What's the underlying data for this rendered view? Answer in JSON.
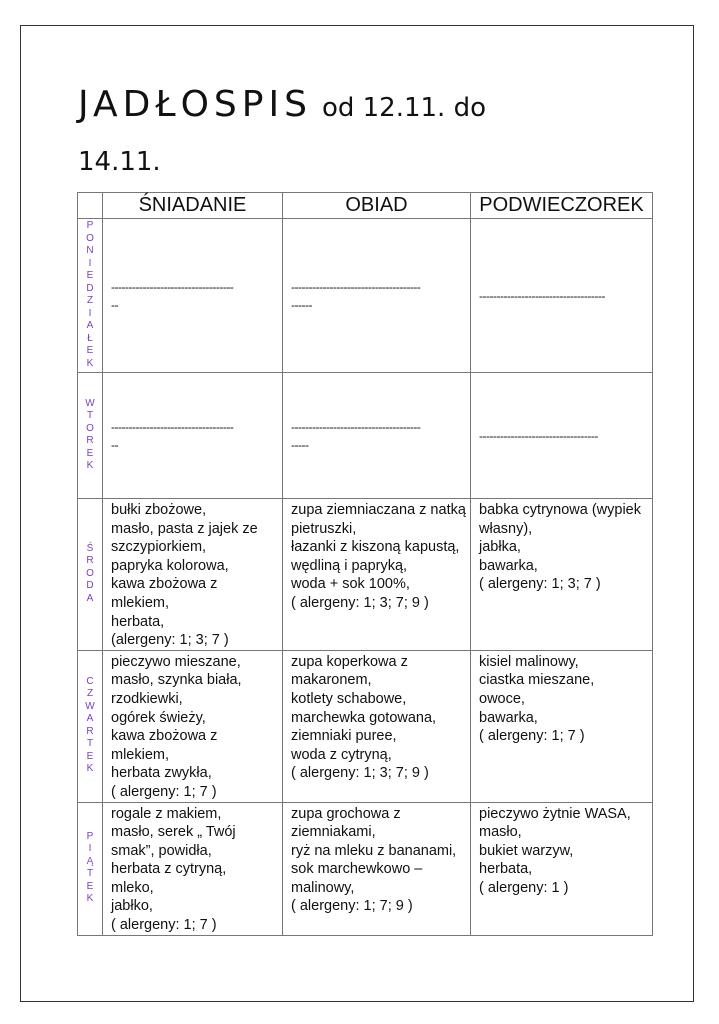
{
  "title": {
    "main": "JADŁOSPIS",
    "range_a": "od 12.11. do",
    "range_b": "14.11."
  },
  "columns": [
    "ŚNIADANIE",
    "OBIAD",
    "PODWIECZOREK"
  ],
  "days": [
    {
      "label": "P\nO\nN\nI\nE\nD\nZ\nI\nA\nŁ\nE\nK",
      "meals": [
        "-----------------------------------\n--",
        "-------------------------------------\n------",
        "------------------------------------"
      ]
    },
    {
      "label": "W\nT\nO\nR\nE\nK",
      "meals": [
        "-----------------------------------\n--",
        "-------------------------------------\n-----",
        "----------------------------------"
      ]
    },
    {
      "label": "Ś\nR\nO\nD\nA",
      "meals": [
        "bułki zbożowe,\nmasło, pasta z jajek ze szczypiorkiem,\npapryka kolorowa,\nkawa zbożowa z mlekiem,\nherbata,\n(alergeny: 1; 3; 7 )",
        "zupa ziemniaczana z natką pietruszki,\nłazanki z kiszoną kapustą, wędliną i papryką,\nwoda + sok 100%,\n( alergeny: 1; 3; 7; 9 )",
        "babka cytrynowa (wypiek własny),\njabłka,\nbawarka,\n( alergeny: 1; 3; 7 )"
      ]
    },
    {
      "label": "C\nZ\nW\nA\nR\nT\nE\nK",
      "meals": [
        "pieczywo mieszane,\nmasło, szynka biała,\nrzodkiewki,\nogórek świeży,\nkawa zbożowa z mlekiem,\nherbata zwykła,\n( alergeny: 1; 7 )",
        "zupa koperkowa z makaronem,\nkotlety schabowe,\nmarchewka gotowana,\nziemniaki puree,\nwoda z cytryną,\n( alergeny: 1; 3; 7; 9 )",
        "kisiel malinowy,\nciastka mieszane,\nowoce,\nbawarka,\n( alergeny: 1; 7 )"
      ]
    },
    {
      "label": "P\nI\nĄ\nT\nE\nK",
      "meals": [
        "rogale z makiem,\nmasło, serek „ Twój smak”, powidła,\nherbata z cytryną,\nmleko,\njabłko,\n( alergeny: 1; 7 )",
        "zupa grochowa z ziemniakami,\nryż na mleku z bananami,\nsok marchewkowo – malinowy,\n( alergeny: 1; 7; 9 )",
        "pieczywo żytnie WASA,\nmasło,\nbukiet warzyw,\nherbata,\n( alergeny: 1 )"
      ]
    }
  ],
  "colors": {
    "day_label": "#7b3fbf"
  }
}
